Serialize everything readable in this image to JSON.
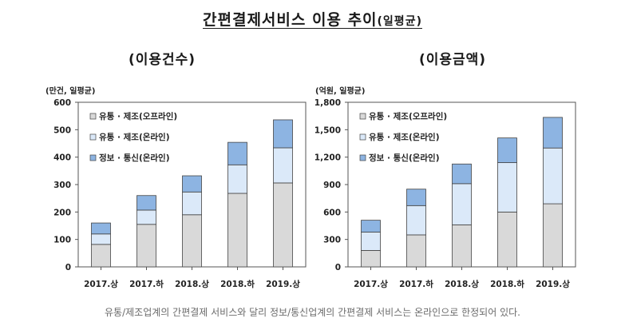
{
  "title": {
    "main": "간편결제서비스 이용 추이",
    "suffix": "(일평균)"
  },
  "caption": "유통/제조업계의 간편결제 서비스와 달리 정보/통신업계의 간편결제 서비스는 온라인으로 한정되어 있다.",
  "colors": {
    "offline": "#d9d9d9",
    "online_retail": "#dbe9f9",
    "it_online": "#8db4e2",
    "border": "#444444"
  },
  "chart_data": [
    {
      "type": "bar",
      "stacked": true,
      "title": "(이용건수)",
      "ylabel": "(만건, 일평균)",
      "ylim": [
        0,
        600
      ],
      "yticks": [
        "0",
        "100",
        "200",
        "300",
        "400",
        "500",
        "600"
      ],
      "categories": [
        "2017.상",
        "2017.하",
        "2018.상",
        "2018.하",
        "2019.상"
      ],
      "legend": [
        "유통 · 제조(오프라인)",
        "유통 · 제조(온라인)",
        "정보 · 통신(온라인)"
      ],
      "series": [
        {
          "name": "유통 · 제조(오프라인)",
          "values": [
            82,
            155,
            190,
            268,
            306
          ]
        },
        {
          "name": "유통 · 제조(온라인)",
          "values": [
            38,
            52,
            83,
            104,
            128
          ]
        },
        {
          "name": "정보 · 통신(온라인)",
          "values": [
            40,
            53,
            59,
            82,
            102
          ]
        }
      ]
    },
    {
      "type": "bar",
      "stacked": true,
      "title": "(이용금액)",
      "ylabel": "(억원, 일평균)",
      "ylim": [
        0,
        1800
      ],
      "yticks": [
        "0",
        "300",
        "600",
        "900",
        "1,200",
        "1,500",
        "1,800"
      ],
      "categories": [
        "2017.상",
        "2017.하",
        "2018.상",
        "2018.하",
        "2019.상"
      ],
      "legend": [
        "유통 · 제조(오프라인)",
        "유통 · 제조(온라인)",
        "정보 · 통신(온라인)"
      ],
      "series": [
        {
          "name": "유통 · 제조(오프라인)",
          "values": [
            180,
            350,
            460,
            600,
            690
          ]
        },
        {
          "name": "유통 · 제조(온라인)",
          "values": [
            200,
            320,
            450,
            540,
            610
          ]
        },
        {
          "name": "정보 · 통신(온라인)",
          "values": [
            130,
            180,
            215,
            270,
            335
          ]
        }
      ]
    }
  ]
}
